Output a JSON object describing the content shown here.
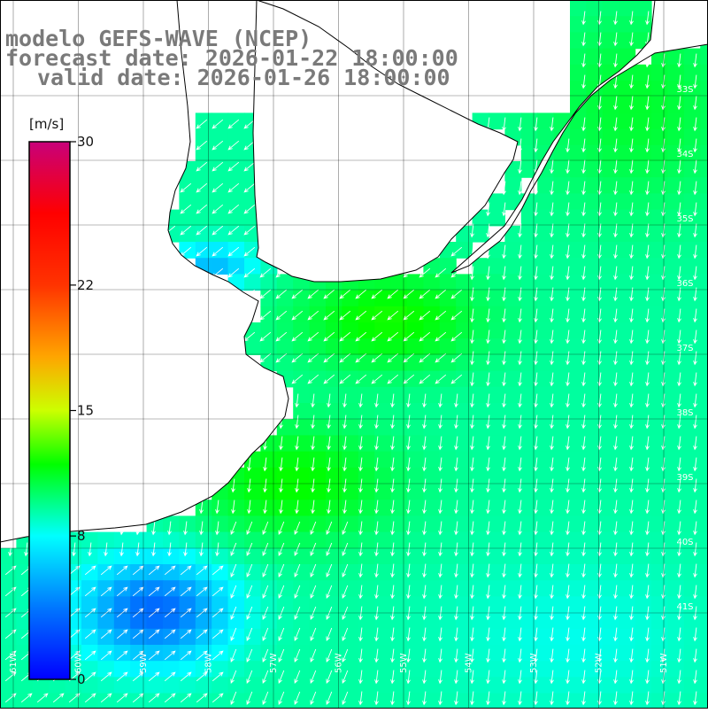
{
  "title": {
    "line1": "modelo GEFS-WAVE (NCEP)",
    "line2": "forecast date: 2026-01-22 18:00:00",
    "line3": "valid date: 2026-01-26 18:00:00"
  },
  "colorbar": {
    "unit": "[m/s]",
    "ticks": [
      {
        "value": 30,
        "label": "30"
      },
      {
        "value": 22,
        "label": "22"
      },
      {
        "value": 15,
        "label": "15"
      },
      {
        "value": 8,
        "label": "8"
      },
      {
        "value": 0,
        "label": "0"
      }
    ],
    "min": 0,
    "max": 30,
    "stops": [
      {
        "value": 0,
        "color": "#0000ff"
      },
      {
        "value": 4,
        "color": "#0077ff"
      },
      {
        "value": 8,
        "color": "#00ffff"
      },
      {
        "value": 12,
        "color": "#00ff00"
      },
      {
        "value": 15,
        "color": "#ccff00"
      },
      {
        "value": 18,
        "color": "#ffa500"
      },
      {
        "value": 22,
        "color": "#ff3300"
      },
      {
        "value": 26,
        "color": "#ff0000"
      },
      {
        "value": 30,
        "color": "#c8007a"
      }
    ]
  },
  "lat_labels": [
    "33S",
    "34S",
    "35S",
    "36S",
    "37S",
    "38S",
    "39S",
    "40S",
    "41S"
  ],
  "lon_labels": [
    "61W",
    "60W",
    "59W",
    "58W",
    "57W",
    "56W",
    "55W",
    "54W",
    "53W",
    "52W",
    "51W"
  ],
  "wind_field": {
    "variable": "wind speed",
    "unit": "m/s",
    "lon_range": [
      -62,
      -50
    ],
    "lat_range": [
      -41,
      -32
    ],
    "typical_speed_open_sea": 10,
    "max_speed_region": "Rio de la Plata mouth / coast near 38S",
    "min_speed_region": "south-west near 40S 60W"
  },
  "colors": {
    "land": "#ffffff",
    "coastline": "#000000",
    "grid": "#000000",
    "arrows": "#ffffff",
    "title_text": "#7a7a7a"
  }
}
